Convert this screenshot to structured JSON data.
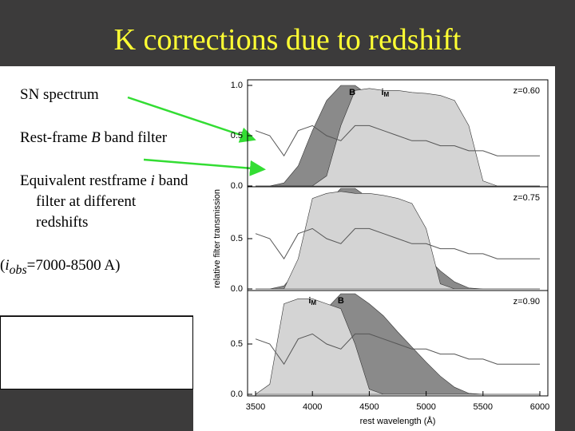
{
  "title": "K corrections due to redshift",
  "bullets": [
    {
      "runs": [
        "SN spectrum"
      ]
    },
    {
      "runs": [
        "Rest-frame ",
        "B",
        " band filter"
      ],
      "italic": [
        1
      ]
    },
    {
      "runs": [
        "Equivalent restframe ",
        "i",
        " band filter at different redshifts"
      ],
      "italic": [
        1
      ]
    },
    {
      "runs": [
        "(",
        "i",
        "obs",
        "=7000-8500 A)"
      ],
      "italic": [
        1,
        2
      ],
      "sub": [
        2
      ],
      "hanging": false
    }
  ],
  "chart_data": [
    {
      "type": "area",
      "x": [
        3500,
        3625,
        3750,
        3875,
        4000,
        4125,
        4250,
        4375,
        4500,
        4625,
        4750,
        4875,
        5000,
        5125,
        5250,
        5375,
        5500,
        5625,
        5750,
        5875,
        6000
      ],
      "xlim": [
        3500,
        6000
      ],
      "ylim": [
        0,
        1.05
      ],
      "yticks": [
        {
          "value": 0,
          "label": "0.0"
        },
        0.5,
        {
          "value": 1,
          "label": "1.0"
        }
      ],
      "annotation": "z=0.60",
      "series": [
        {
          "name": "B",
          "type": "area",
          "color": "#8a8a8a",
          "values": [
            0,
            0,
            0.03,
            0.2,
            0.55,
            0.85,
            1.0,
            1.0,
            0.9,
            0.78,
            0.62,
            0.47,
            0.32,
            0.18,
            0.07,
            0.01,
            0,
            0,
            0,
            0,
            0
          ]
        },
        {
          "name": "i",
          "name_sub": "M",
          "type": "area",
          "color": "#d4d4d4",
          "values": [
            0,
            0,
            0,
            0,
            0,
            0.1,
            0.6,
            0.95,
            0.97,
            0.95,
            0.95,
            0.93,
            0.92,
            0.9,
            0.85,
            0.6,
            0.05,
            0,
            0,
            0,
            0
          ]
        },
        {
          "type": "line",
          "color": "#555555",
          "values": [
            0.55,
            0.5,
            0.3,
            0.55,
            0.6,
            0.5,
            0.45,
            0.6,
            0.6,
            0.55,
            0.5,
            0.45,
            0.45,
            0.4,
            0.4,
            0.35,
            0.35,
            0.3,
            0.3,
            0.3,
            0.3
          ]
        }
      ]
    },
    {
      "type": "area",
      "x": [
        3500,
        3625,
        3750,
        3875,
        4000,
        4125,
        4250,
        4375,
        4500,
        4625,
        4750,
        4875,
        5000,
        5125,
        5250,
        5375,
        5500,
        5625,
        5750,
        5875,
        6000
      ],
      "xlim": [
        3500,
        6000
      ],
      "ylim": [
        0,
        1.05
      ],
      "yticks": [
        {
          "value": 0,
          "label": "0.0"
        },
        0.5
      ],
      "annotation": "z=0.75",
      "ylabel": "relative filter transmission",
      "series": [
        {
          "type": "area",
          "color": "#8a8a8a",
          "values": [
            0,
            0,
            0.03,
            0.2,
            0.55,
            0.85,
            1.0,
            1.0,
            0.9,
            0.78,
            0.62,
            0.47,
            0.32,
            0.18,
            0.07,
            0.01,
            0,
            0,
            0,
            0,
            0
          ]
        },
        {
          "type": "area",
          "color": "#d4d4d4",
          "values": [
            0,
            0,
            0,
            0.3,
            0.9,
            0.95,
            0.97,
            0.95,
            0.95,
            0.93,
            0.9,
            0.85,
            0.6,
            0.05,
            0,
            0,
            0,
            0,
            0,
            0,
            0
          ]
        },
        {
          "type": "line",
          "color": "#555555",
          "values": [
            0.55,
            0.5,
            0.3,
            0.55,
            0.6,
            0.5,
            0.45,
            0.6,
            0.6,
            0.55,
            0.5,
            0.45,
            0.45,
            0.4,
            0.4,
            0.35,
            0.35,
            0.3,
            0.3,
            0.3,
            0.3
          ]
        }
      ]
    },
    {
      "type": "area",
      "x": [
        3500,
        3625,
        3750,
        3875,
        4000,
        4125,
        4250,
        4375,
        4500,
        4625,
        4750,
        4875,
        5000,
        5125,
        5250,
        5375,
        5500,
        5625,
        5750,
        5875,
        6000
      ],
      "xlim": [
        3500,
        6000
      ],
      "ylim": [
        0,
        1.05
      ],
      "yticks": [
        {
          "value": 0,
          "label": "0.0"
        },
        0.5
      ],
      "xticks": [
        3500,
        4000,
        4500,
        5000,
        5500,
        6000
      ],
      "xlabel": "rest wavelength (Å)",
      "annotation": "z=0.90",
      "series": [
        {
          "name": "B",
          "type": "area",
          "color": "#8a8a8a",
          "values": [
            0,
            0,
            0.03,
            0.2,
            0.55,
            0.85,
            1.0,
            1.0,
            0.9,
            0.78,
            0.62,
            0.47,
            0.32,
            0.18,
            0.07,
            0.01,
            0,
            0,
            0,
            0,
            0
          ]
        },
        {
          "name": "i",
          "name_sub": "M",
          "type": "area",
          "color": "#d4d4d4",
          "values": [
            0,
            0.1,
            0.9,
            0.95,
            0.95,
            0.9,
            0.85,
            0.5,
            0.05,
            0,
            0,
            0,
            0,
            0,
            0,
            0,
            0,
            0,
            0,
            0,
            0
          ]
        },
        {
          "type": "line",
          "color": "#555555",
          "values": [
            0.55,
            0.5,
            0.3,
            0.55,
            0.6,
            0.5,
            0.45,
            0.6,
            0.6,
            0.55,
            0.5,
            0.45,
            0.45,
            0.4,
            0.4,
            0.35,
            0.35,
            0.3,
            0.3,
            0.3,
            0.3
          ]
        }
      ]
    }
  ]
}
